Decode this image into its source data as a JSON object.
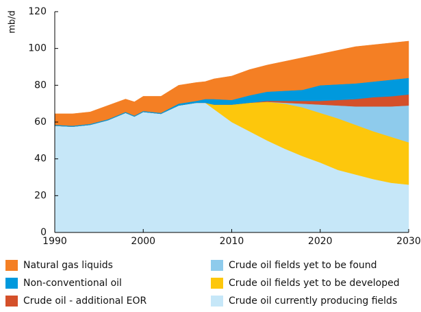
{
  "chart_data": {
    "type": "stacked_area",
    "y_label": "mb/d",
    "x": [
      1990,
      1992,
      1994,
      1996,
      1998,
      1999,
      2000,
      2002,
      2004,
      2006,
      2007,
      2008,
      2010,
      2012,
      2014,
      2016,
      2018,
      2020,
      2022,
      2024,
      2026,
      2028,
      2030
    ],
    "series": [
      {
        "name": "Crude oil currently producing fields",
        "color": "#c6e7f8",
        "values": [
          58,
          57.5,
          58.5,
          61,
          65,
          63,
          65.5,
          64.5,
          69,
          70.5,
          70.5,
          67,
          60,
          55,
          50,
          45.5,
          41.5,
          38,
          34,
          31.5,
          29,
          27,
          26
        ]
      },
      {
        "name": "Crude oil fields yet to be developed",
        "color": "#fdc70c",
        "values": [
          0,
          0,
          0,
          0,
          0,
          0,
          0,
          0,
          0,
          0,
          0,
          2.5,
          9.5,
          15.5,
          21,
          24.5,
          26.5,
          27,
          28,
          27,
          26,
          25,
          23
        ]
      },
      {
        "name": "Crude oil fields yet to be found",
        "color": "#8ecbec",
        "values": [
          0,
          0,
          0,
          0,
          0,
          0,
          0,
          0,
          0,
          0,
          0,
          0,
          0,
          0,
          0,
          0.5,
          2,
          4.5,
          7,
          10,
          13.5,
          16.5,
          20
        ]
      },
      {
        "name": "Crude oil - additional EOR",
        "color": "#d4502a",
        "values": [
          0,
          0,
          0,
          0,
          0,
          0,
          0,
          0,
          0,
          0,
          0,
          0,
          0,
          0,
          0.5,
          1,
          1.5,
          2,
          3,
          4,
          5,
          5.5,
          6
        ]
      },
      {
        "name": "Non-conventional oil",
        "color": "#0099dd",
        "values": [
          0.5,
          0.5,
          0.5,
          0.5,
          0.5,
          0.5,
          0.5,
          0.5,
          1,
          1,
          2,
          3,
          2.5,
          4,
          5,
          5.5,
          6,
          8.5,
          8.5,
          8.5,
          8.5,
          9,
          9
        ]
      },
      {
        "name": "Natural gas liquids",
        "color": "#f47f24",
        "values": [
          6,
          6.5,
          6.5,
          7.5,
          7,
          7.5,
          8,
          9,
          10,
          10,
          9.5,
          11,
          13,
          14,
          14.5,
          16,
          17.5,
          17,
          18.5,
          20,
          20,
          20,
          20
        ]
      }
    ],
    "xlim": [
      1990,
      2030
    ],
    "xticks": [
      1990,
      2000,
      2010,
      2020,
      2030
    ],
    "ylim": [
      0,
      120
    ],
    "yticks": [
      0,
      20,
      40,
      60,
      80,
      100,
      120
    ]
  }
}
